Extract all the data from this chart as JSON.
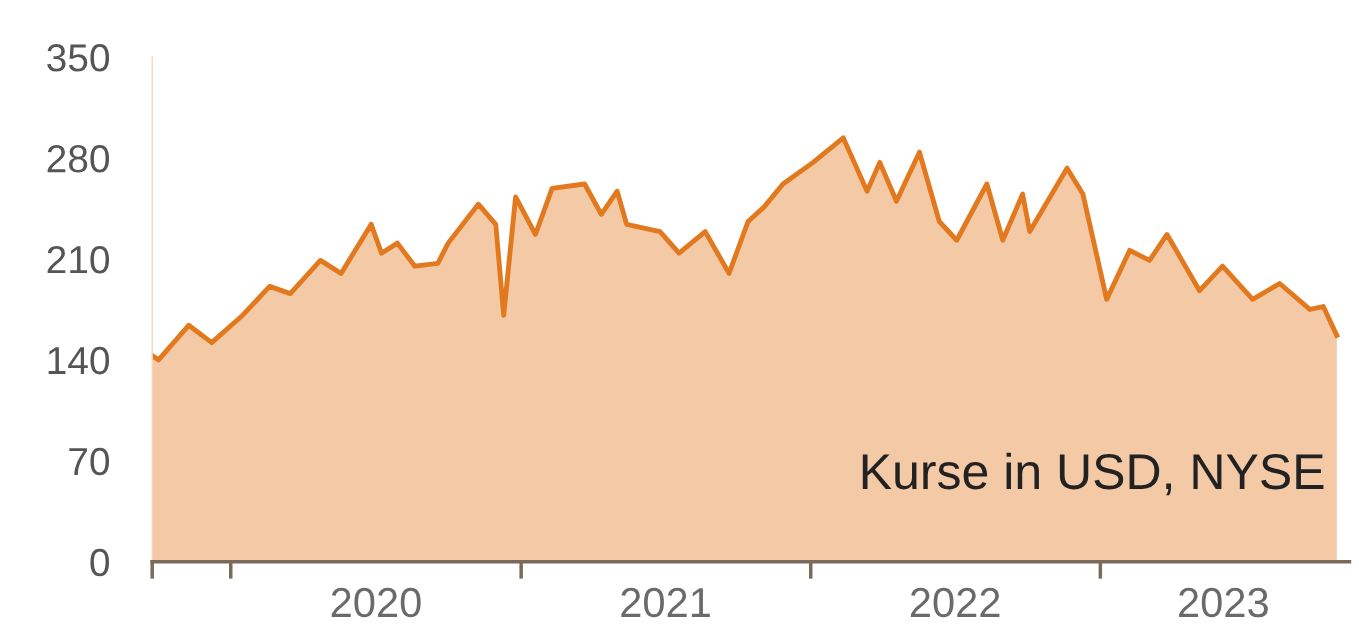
{
  "chart_data": {
    "type": "area",
    "x": [
      "2019-09-24",
      "2019-10-02",
      "2019-11-09",
      "2019-12-08",
      "2020-01-16",
      "2020-02-19",
      "2020-03-16",
      "2020-04-23",
      "2020-05-19",
      "2020-06-26",
      "2020-07-09",
      "2020-07-29",
      "2020-08-20",
      "2020-09-18",
      "2020-10-01",
      "2020-11-08",
      "2020-11-30",
      "2020-12-10",
      "2020-12-25",
      "2021-01-19",
      "2021-02-09",
      "2021-03-22",
      "2021-04-12",
      "2021-05-02",
      "2021-05-14",
      "2021-06-25",
      "2021-07-19",
      "2021-08-21",
      "2021-09-20",
      "2021-10-14",
      "2021-11-03",
      "2021-11-27",
      "2022-01-04",
      "2022-02-11",
      "2022-03-13",
      "2022-03-29",
      "2022-04-19",
      "2022-05-18",
      "2022-06-12",
      "2022-07-04",
      "2022-08-11",
      "2022-08-31",
      "2022-09-25",
      "2022-10-04",
      "2022-11-20",
      "2022-12-10",
      "2023-01-09",
      "2023-02-07",
      "2023-03-04",
      "2023-03-26",
      "2023-05-06",
      "2023-06-04",
      "2023-07-12",
      "2023-08-15",
      "2023-09-22",
      "2023-10-09",
      "2023-10-26"
    ],
    "series": [
      {
        "color": "#e3791f",
        "values": [
          143,
          140,
          164,
          152,
          171,
          191,
          186,
          209,
          200,
          234,
          214,
          221,
          205,
          207,
          221,
          248,
          234,
          171,
          253,
          227,
          259,
          262,
          241,
          257,
          234,
          229,
          214,
          229,
          200,
          236,
          246,
          262,
          277,
          294,
          257,
          277,
          250,
          284,
          236,
          223,
          262,
          223,
          255,
          229,
          273,
          255,
          182,
          216,
          209,
          227,
          188,
          205,
          182,
          193,
          175,
          177,
          157
        ]
      }
    ],
    "xlim": [
      "2019-09-24",
      "2023-11-11"
    ],
    "xticks": [
      {
        "value": "2019-09-24",
        "label": null
      },
      {
        "value": "2020-01-01",
        "label": null
      },
      {
        "value": "2020-07-02",
        "label": "2020"
      },
      {
        "value": "2021-01-01",
        "label": null
      },
      {
        "value": "2021-07-02",
        "label": "2021"
      },
      {
        "value": "2022-01-01",
        "label": null
      },
      {
        "value": "2022-07-02",
        "label": "2022"
      },
      {
        "value": "2023-01-01",
        "label": null
      },
      {
        "value": "2023-06-05",
        "label": "2023"
      }
    ],
    "ylim": [
      0,
      350
    ],
    "yticks": [
      0,
      70,
      140,
      210,
      280,
      350
    ],
    "grid": false,
    "annotations": [
      "Kurse in USD, NYSE"
    ]
  }
}
